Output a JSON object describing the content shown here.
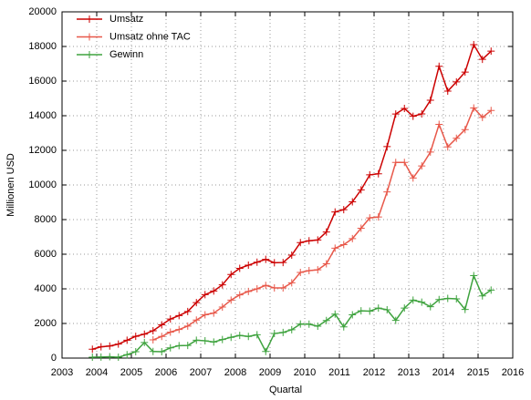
{
  "chart_data": {
    "type": "line",
    "xlabel": "Quartal",
    "ylabel": "Millionen USD",
    "x": [
      2003.875,
      2004.125,
      2004.375,
      2004.625,
      2004.875,
      2005.125,
      2005.375,
      2005.625,
      2005.875,
      2006.125,
      2006.375,
      2006.625,
      2006.875,
      2007.125,
      2007.375,
      2007.625,
      2007.875,
      2008.125,
      2008.375,
      2008.625,
      2008.875,
      2009.125,
      2009.375,
      2009.625,
      2009.875,
      2010.125,
      2010.375,
      2010.625,
      2010.875,
      2011.125,
      2011.375,
      2011.625,
      2011.875,
      2012.125,
      2012.375,
      2012.625,
      2012.875,
      2013.125,
      2013.375,
      2013.625,
      2013.875,
      2014.125,
      2014.375,
      2014.625,
      2014.875,
      2015.125,
      2015.375
    ],
    "series": [
      {
        "name": "Umsatz",
        "color": "#cc0000",
        "values": [
          512,
          652,
          700,
          806,
          1032,
          1257,
          1384,
          1578,
          1919,
          2254,
          2456,
          2690,
          3206,
          3664,
          3872,
          4231,
          4827,
          5186,
          5367,
          5541,
          5701,
          5509,
          5523,
          5945,
          6674,
          6775,
          6820,
          7286,
          8440,
          8575,
          9026,
          9720,
          10584,
          10645,
          12214,
          14101,
          14419,
          13969,
          14105,
          14893,
          16858,
          15420,
          15955,
          16523,
          18103,
          17258,
          17727
        ]
      },
      {
        "name": "Umsatz ohne TAC",
        "color": "#e8584a",
        "values": [
          null,
          null,
          null,
          null,
          null,
          null,
          null,
          1050,
          1250,
          1500,
          1650,
          1850,
          2200,
          2500,
          2600,
          2950,
          3350,
          3650,
          3850,
          4000,
          4200,
          4050,
          4050,
          4350,
          4950,
          5050,
          5100,
          5450,
          6350,
          6550,
          6900,
          7500,
          8100,
          8150,
          9600,
          11300,
          11300,
          10400,
          11100,
          11900,
          13500,
          12200,
          12700,
          13200,
          14450,
          13900,
          14300
        ]
      },
      {
        "name": "Gewinn",
        "color": "#3fa33f",
        "values": [
          50,
          60,
          80,
          50,
          200,
          370,
          900,
          380,
          370,
          590,
          720,
          730,
          1030,
          1000,
          930,
          1070,
          1200,
          1310,
          1250,
          1350,
          380,
          1420,
          1480,
          1640,
          1970,
          1960,
          1840,
          2170,
          2540,
          1800,
          2500,
          2730,
          2710,
          2890,
          2790,
          2180,
          2890,
          3350,
          3230,
          2970,
          3380,
          3450,
          3420,
          2810,
          4760,
          3590,
          3930
        ]
      }
    ],
    "xlim": [
      2003,
      2016
    ],
    "xticks": [
      2003,
      2004,
      2005,
      2006,
      2007,
      2008,
      2009,
      2010,
      2011,
      2012,
      2013,
      2014,
      2015,
      2016
    ],
    "ylim": [
      0,
      20000
    ],
    "yticks": [
      0,
      2000,
      4000,
      6000,
      8000,
      10000,
      12000,
      14000,
      16000,
      18000,
      20000
    ],
    "grid": true,
    "legend": "top-left"
  }
}
